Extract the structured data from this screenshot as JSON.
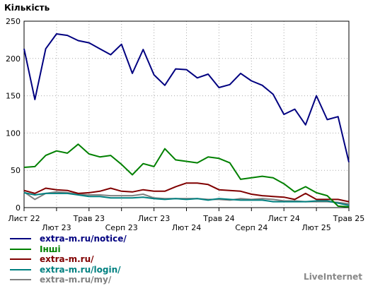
{
  "colors": {
    "background": "#ffffff",
    "axis": "#000000",
    "grid": "#aaaaaa",
    "brand": "#888888"
  },
  "brand": "LiveInternet",
  "chart_data": {
    "type": "line",
    "title": "",
    "ylabel": "Кількість",
    "xlabel": "",
    "ylim": [
      0,
      250
    ],
    "yticks": [
      0,
      50,
      100,
      150,
      200,
      250
    ],
    "grid": true,
    "legend_position": "bottom-left",
    "x_labels": [
      {
        "index": 0,
        "label": "Лист 22",
        "row": 0
      },
      {
        "index": 3,
        "label": "Лют 23",
        "row": 1
      },
      {
        "index": 6,
        "label": "Трав 23",
        "row": 0
      },
      {
        "index": 9,
        "label": "Серп 23",
        "row": 1
      },
      {
        "index": 12,
        "label": "Лист 23",
        "row": 0
      },
      {
        "index": 15,
        "label": "Лют 24",
        "row": 1
      },
      {
        "index": 18,
        "label": "Трав 24",
        "row": 0
      },
      {
        "index": 21,
        "label": "Серп 24",
        "row": 1
      },
      {
        "index": 24,
        "label": "Лист 24",
        "row": 0
      },
      {
        "index": 27,
        "label": "Лют 25",
        "row": 1
      },
      {
        "index": 30,
        "label": "Трав 25",
        "row": 0
      }
    ],
    "series": [
      {
        "name": "extra-m.ru/notice/",
        "color": "#000080",
        "values": [
          213,
          145,
          213,
          233,
          231,
          224,
          221,
          213,
          205,
          219,
          180,
          212,
          178,
          164,
          186,
          185,
          174,
          179,
          161,
          165,
          180,
          170,
          164,
          152,
          125,
          132,
          111,
          150,
          118,
          122,
          61
        ]
      },
      {
        "name": "Інші",
        "color": "#008000",
        "values": [
          54,
          55,
          70,
          76,
          73,
          85,
          72,
          68,
          70,
          58,
          44,
          59,
          55,
          79,
          64,
          62,
          60,
          68,
          66,
          60,
          38,
          40,
          42,
          40,
          32,
          21,
          28,
          20,
          16,
          2,
          1
        ]
      },
      {
        "name": "extra-m.ru/",
        "color": "#800000",
        "values": [
          23,
          19,
          26,
          24,
          23,
          19,
          20,
          22,
          26,
          22,
          21,
          24,
          22,
          22,
          28,
          33,
          33,
          31,
          24,
          23,
          22,
          18,
          16,
          15,
          14,
          11,
          19,
          11,
          11,
          11,
          8
        ]
      },
      {
        "name": "extra-m.ru/login/",
        "color": "#008080",
        "values": [
          20,
          17,
          19,
          19,
          19,
          17,
          15,
          15,
          13,
          13,
          13,
          14,
          12,
          11,
          12,
          11,
          12,
          10,
          12,
          11,
          10,
          10,
          10,
          8,
          8,
          8,
          8,
          9,
          9,
          6,
          3
        ]
      },
      {
        "name": "extra-m.ru/my/",
        "color": "#808080",
        "values": [
          21,
          11,
          19,
          21,
          20,
          18,
          17,
          17,
          16,
          16,
          16,
          18,
          13,
          12,
          12,
          12,
          12,
          11,
          11,
          10,
          12,
          11,
          12,
          11,
          9,
          9,
          8,
          8,
          8,
          7,
          5
        ]
      }
    ]
  }
}
